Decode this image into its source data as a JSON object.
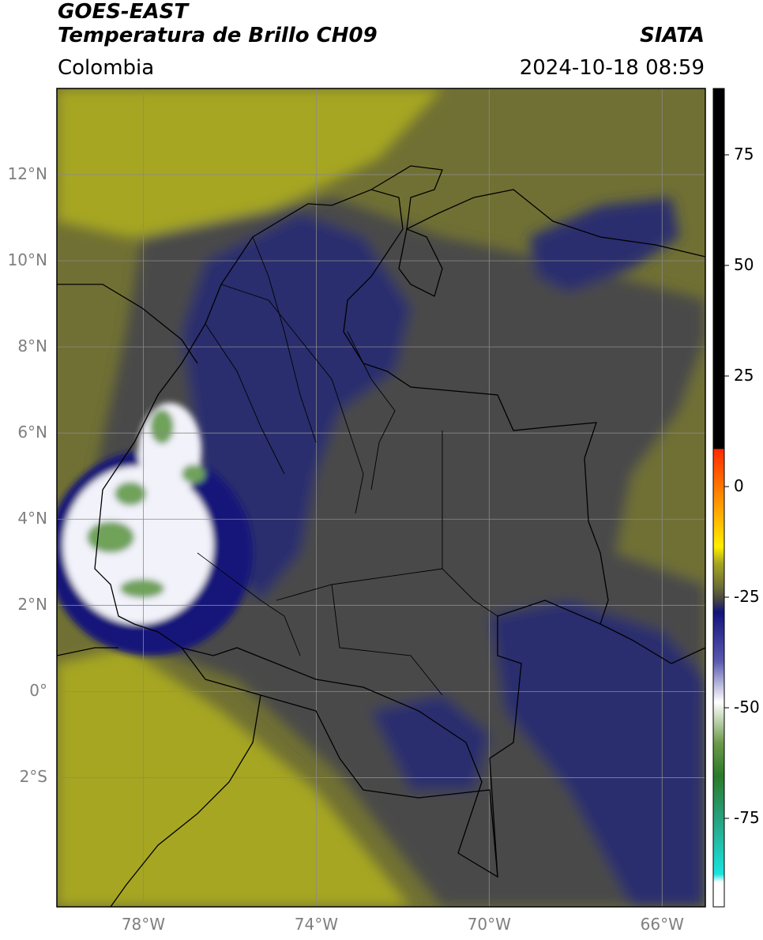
{
  "header": {
    "title_line1": "GOES-EAST",
    "title_line2": "Temperatura de Brillo CH09",
    "agency": "SIATA",
    "region": "Colombia",
    "timestamp": "2024-10-18 08:59"
  },
  "map": {
    "lon_range": [
      -80,
      -65
    ],
    "lat_range": [
      -5,
      14
    ],
    "lat_ticks": [
      {
        "value": 12,
        "label": "12°N"
      },
      {
        "value": 10,
        "label": "10°N"
      },
      {
        "value": 8,
        "label": "8°N"
      },
      {
        "value": 6,
        "label": "6°N"
      },
      {
        "value": 4,
        "label": "4°N"
      },
      {
        "value": 2,
        "label": "2°N"
      },
      {
        "value": 0,
        "label": "0°"
      },
      {
        "value": -2,
        "label": "2°S"
      }
    ],
    "lon_ticks": [
      {
        "value": -78,
        "label": "78°W"
      },
      {
        "value": -74,
        "label": "74°W"
      },
      {
        "value": -70,
        "label": "70°W"
      },
      {
        "value": -66,
        "label": "66°W"
      }
    ],
    "colors": {
      "warm_yellow": "#a6a622",
      "olive": "#707034",
      "gray": "#4a4a48",
      "dark_blue": "#2a2f6e",
      "deep_blue": "#15157a",
      "white": "#f2f2fa",
      "green": "#6fa25a"
    }
  },
  "colorbar": {
    "range": [
      -95,
      90
    ],
    "ticks": [
      {
        "value": 75,
        "label": "75"
      },
      {
        "value": 50,
        "label": "50"
      },
      {
        "value": 25,
        "label": "25"
      },
      {
        "value": 0,
        "label": "0"
      },
      {
        "value": -25,
        "label": "-25"
      },
      {
        "value": -50,
        "label": "-50"
      },
      {
        "value": -75,
        "label": "-75"
      }
    ]
  }
}
